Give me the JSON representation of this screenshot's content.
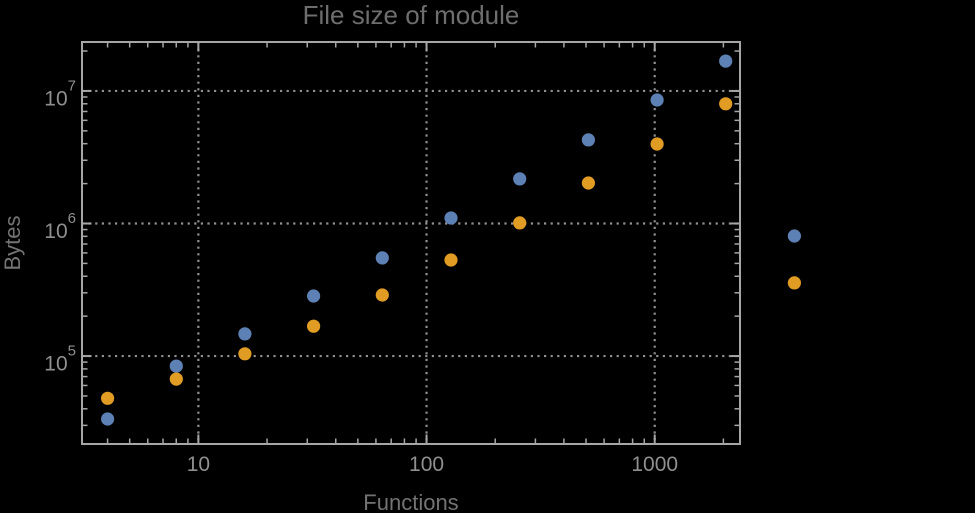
{
  "window": {
    "background": "#000000"
  },
  "chart_data": {
    "type": "scatter",
    "title": "File size of module",
    "xlabel": "Functions",
    "ylabel": "Bytes",
    "x_scale": "log",
    "y_scale": "log",
    "xlim": [
      3.09,
      2365
    ],
    "ylim": [
      21700,
      23400000
    ],
    "grid": "dotted lines at decade ticks, major gridlines only",
    "legend": "none",
    "marker": "filled circle",
    "note": "points at x=4096 lie outside the plot frame on the right (unclipped)",
    "x": [
      4,
      8,
      16,
      32,
      64,
      128,
      256,
      512,
      1024,
      2048,
      4096
    ],
    "series": [
      {
        "name": "blue",
        "color": "#5e81b5",
        "values": [
          33500,
          84000,
          147000,
          284000,
          550000,
          1100000,
          2170000,
          4270000,
          8550000,
          16800000,
          805000
        ]
      },
      {
        "name": "orange",
        "color": "#e19c24",
        "values": [
          48000,
          67000,
          104000,
          168000,
          289000,
          530000,
          1010000,
          2020000,
          3980000,
          8000000,
          356000
        ]
      }
    ],
    "x_axis": {
      "label": "Functions",
      "major_ticks": [
        {
          "value": 10,
          "label": "10"
        },
        {
          "value": 100,
          "label": "100"
        },
        {
          "value": 1000,
          "label": "1000"
        }
      ]
    },
    "y_axis": {
      "label": "Bytes",
      "major_ticks": [
        {
          "value": 100000,
          "mantissa": "10",
          "exponent": "5"
        },
        {
          "value": 1000000,
          "mantissa": "10",
          "exponent": "6"
        },
        {
          "value": 10000000,
          "mantissa": "10",
          "exponent": "7"
        }
      ]
    }
  },
  "colors": {
    "background": "#000000",
    "frame": "#a6a6a6",
    "gridlines": "#909090",
    "title_text": "#6e6e6e",
    "axis_label_text": "#737373",
    "tick_label_text": "#8f8f8f",
    "series_blue": "#5e81b5",
    "series_orange": "#e19c24"
  }
}
